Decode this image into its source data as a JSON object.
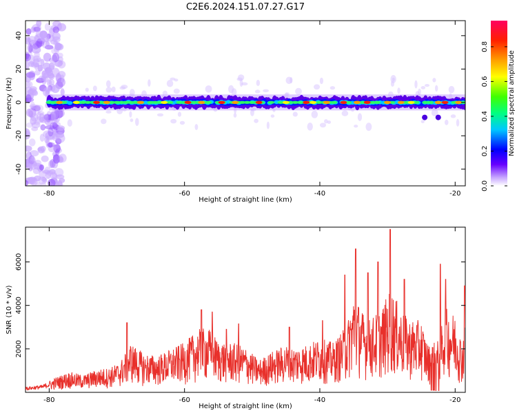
{
  "title": "C2E6.2024.151.07.27.G17",
  "chart_data": [
    {
      "type": "heatmap",
      "xlabel": "Height of straight line (km)",
      "ylabel": "Frequency (Hz)",
      "xlim": [
        -83.5,
        -18.5
      ],
      "ylim": [
        -50,
        49
      ],
      "x_ticks": [
        -80,
        -60,
        -40,
        -20
      ],
      "y_ticks": [
        -40,
        -20,
        0,
        20,
        40
      ],
      "band": {
        "center_hz": 0,
        "half_width_hz": 3,
        "x_range": [
          -80,
          -18.5
        ]
      },
      "noise_region": {
        "x_range": [
          -83.5,
          -78
        ],
        "y_range": [
          -50,
          49
        ]
      },
      "hot_spots_x": [
        -78.5,
        -76,
        -73,
        -71.5,
        -66.5,
        -63,
        -59.5,
        -57.5,
        -54.5,
        -52.5,
        -49,
        -45,
        -42,
        -41,
        -39,
        -36.5,
        -34.5,
        -33,
        -30,
        -28,
        -26.5,
        -22.5,
        -21.5,
        -19.5
      ],
      "colorbar": {
        "label": "Normalized spectral amplitude",
        "range": [
          0.0,
          0.95
        ],
        "ticks": [
          0.0,
          0.2,
          0.4,
          0.6,
          0.8
        ],
        "tick_labels": [
          "0.0",
          "0.2",
          "0.4",
          "0.6",
          "0.8"
        ],
        "colors": [
          "#ffffff",
          "#c8a8ff",
          "#6600ff",
          "#0000ff",
          "#00c8ff",
          "#00ff80",
          "#40ff00",
          "#ffff00",
          "#ffa000",
          "#ff2000",
          "#ff0060"
        ]
      }
    },
    {
      "type": "line",
      "xlabel": "Height of straight line (km)",
      "ylabel": "SNR (10 * v/v)",
      "xlim": [
        -83.5,
        -18.5
      ],
      "ylim": [
        0,
        7600
      ],
      "x_ticks": [
        -80,
        -60,
        -40,
        -20
      ],
      "y_ticks": [
        2000,
        4000,
        6000
      ],
      "line_color": "#e8302b",
      "envelope": {
        "x": [
          -83.5,
          -81,
          -79,
          -77,
          -75,
          -73,
          -71,
          -69.5,
          -68,
          -66,
          -64,
          -62,
          -60,
          -58,
          -56.5,
          -55,
          -53,
          -51,
          -49,
          -47,
          -45,
          -44,
          -42,
          -40,
          -38,
          -36,
          -35,
          -33,
          -31,
          -29.5,
          -28,
          -27,
          -25,
          -24,
          -22.5,
          -21.5,
          -20,
          -19,
          -18.5
        ],
        "y": [
          250,
          350,
          700,
          950,
          800,
          1050,
          1150,
          1400,
          2300,
          1800,
          1700,
          2000,
          2300,
          2900,
          3000,
          2400,
          2300,
          2100,
          1500,
          1900,
          2200,
          2100,
          2200,
          2500,
          2300,
          3100,
          4600,
          3300,
          3800,
          4800,
          3800,
          3400,
          3300,
          2200,
          2400,
          3900,
          3600,
          2400,
          3100
        ]
      },
      "peaks": [
        {
          "x": -36.3,
          "y": 5400
        },
        {
          "x": -34.7,
          "y": 6600
        },
        {
          "x": -32.9,
          "y": 5500
        },
        {
          "x": -31.4,
          "y": 6000
        },
        {
          "x": -29.6,
          "y": 7500
        },
        {
          "x": -27.5,
          "y": 5200
        },
        {
          "x": -22.2,
          "y": 5900
        },
        {
          "x": -21.4,
          "y": 5200
        },
        {
          "x": -18.6,
          "y": 4900
        },
        {
          "x": -68.5,
          "y": 3200
        },
        {
          "x": -57.5,
          "y": 3800
        },
        {
          "x": -55.9,
          "y": 3700
        },
        {
          "x": -53.8,
          "y": 2900
        },
        {
          "x": -52.0,
          "y": 3150
        },
        {
          "x": -44.5,
          "y": 3000
        },
        {
          "x": -39.6,
          "y": 3300
        }
      ]
    }
  ]
}
